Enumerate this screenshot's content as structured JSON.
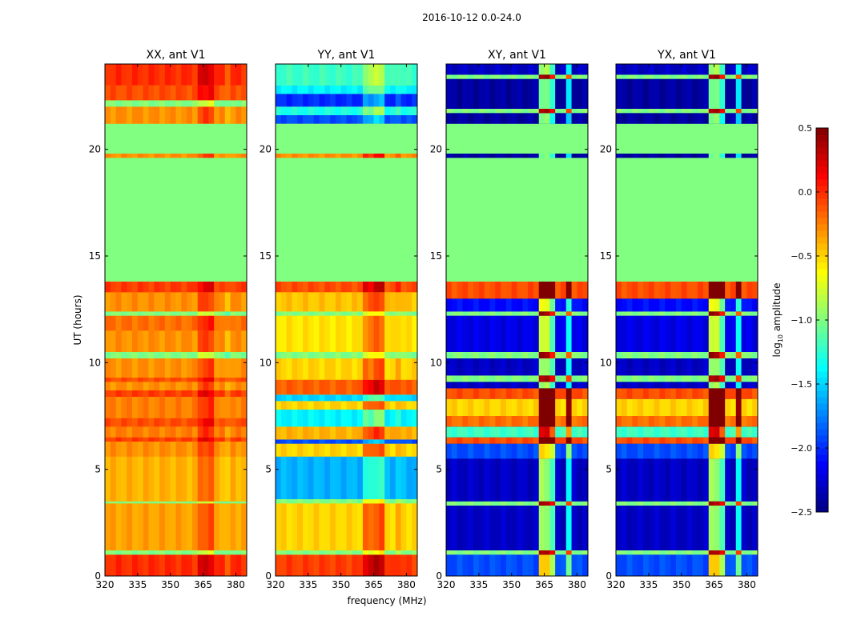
{
  "chart_data": {
    "type": "heatmap",
    "suptitle": "2016-10-12 0.0-24.0",
    "xlabel": "frequency (MHz)",
    "ylabel": "UT (hours)",
    "xlim": [
      320,
      385
    ],
    "ylim": [
      0,
      24
    ],
    "xticks": [
      320,
      335,
      350,
      365,
      380
    ],
    "yticks": [
      0,
      5,
      10,
      15,
      20
    ],
    "colormap": "jet",
    "colorbar": {
      "label": "log10 amplitude",
      "label_base": "log",
      "label_sub": "10",
      "label_rest": " amplitude",
      "vmin": -2.5,
      "vmax": 0.5,
      "ticks": [
        "0.5",
        "0.0",
        "−0.5",
        "−1.0",
        "−1.5",
        "−2.0",
        "−2.5"
      ],
      "tick_values": [
        0.5,
        0.0,
        -0.5,
        -1.0,
        -1.5,
        -2.0,
        -2.5
      ]
    },
    "flagged_range_hours": [
      13.8,
      21.2
    ],
    "flagged_value": -1.0,
    "panels": [
      {
        "title": "XX, ant V1",
        "baseline": -0.3,
        "bands": [
          [
            0,
            1.0,
            0.0
          ],
          [
            1.0,
            1.2,
            -1.0
          ],
          [
            1.2,
            3.4,
            -0.35
          ],
          [
            3.4,
            3.5,
            -1.0
          ],
          [
            3.5,
            5.6,
            -0.4
          ],
          [
            5.6,
            6.3,
            -0.3
          ],
          [
            6.3,
            6.5,
            -0.05
          ],
          [
            6.5,
            7.0,
            -0.25
          ],
          [
            7.0,
            7.4,
            -0.1
          ],
          [
            7.4,
            8.4,
            -0.25
          ],
          [
            8.4,
            8.7,
            -0.05
          ],
          [
            8.7,
            9.1,
            -0.3
          ],
          [
            9.1,
            9.3,
            -0.1
          ],
          [
            9.3,
            10.2,
            -0.3
          ],
          [
            10.2,
            10.5,
            -1.0
          ],
          [
            10.5,
            11.5,
            -0.3
          ],
          [
            11.5,
            12.2,
            -0.2
          ],
          [
            12.2,
            12.4,
            -1.0
          ],
          [
            12.4,
            13.3,
            -0.3
          ],
          [
            13.3,
            13.8,
            -0.05
          ],
          [
            19.6,
            19.8,
            -0.3
          ],
          [
            21.2,
            22.0,
            -0.3
          ],
          [
            22.0,
            22.3,
            -1.0
          ],
          [
            22.3,
            23.0,
            -0.1
          ],
          [
            23.0,
            24.0,
            0.0
          ]
        ],
        "features": [
          [
            362,
            365,
            0.2
          ],
          [
            366,
            369,
            0.25
          ],
          [
            375,
            378,
            -0.1
          ]
        ]
      },
      {
        "title": "YY, ant V1",
        "baseline": -0.5,
        "bands": [
          [
            0,
            1.0,
            -0.05
          ],
          [
            1.0,
            1.2,
            -1.0
          ],
          [
            1.2,
            3.4,
            -0.5
          ],
          [
            3.4,
            3.6,
            -1.0
          ],
          [
            3.6,
            5.6,
            -1.6
          ],
          [
            5.6,
            6.2,
            -0.5
          ],
          [
            6.2,
            6.4,
            -1.9
          ],
          [
            6.4,
            7.0,
            -0.4
          ],
          [
            7.0,
            7.8,
            -1.4
          ],
          [
            7.8,
            8.2,
            -0.5
          ],
          [
            8.2,
            8.5,
            -1.5
          ],
          [
            8.5,
            9.2,
            -0.15
          ],
          [
            9.2,
            10.2,
            -0.5
          ],
          [
            10.2,
            10.5,
            -1.0
          ],
          [
            10.5,
            12.2,
            -0.55
          ],
          [
            12.2,
            12.4,
            -1.0
          ],
          [
            12.4,
            13.3,
            -0.45
          ],
          [
            13.3,
            13.8,
            -0.1
          ],
          [
            19.6,
            19.8,
            -0.3
          ],
          [
            21.2,
            21.6,
            -1.9
          ],
          [
            21.6,
            22.0,
            -1.3
          ],
          [
            22.0,
            22.6,
            -2.0
          ],
          [
            22.6,
            23.0,
            -1.4
          ],
          [
            23.0,
            24.0,
            -1.2
          ]
        ],
        "features": [
          [
            361,
            364,
            0.3
          ],
          [
            365,
            369,
            0.4
          ],
          [
            375,
            378,
            0.1
          ]
        ]
      },
      {
        "title": "XY, ant V1",
        "baseline": -2.3,
        "bands": [
          [
            0,
            1.0,
            -1.9
          ],
          [
            1.0,
            1.2,
            -1.0
          ],
          [
            1.2,
            3.3,
            -2.3
          ],
          [
            3.3,
            3.5,
            -1.0
          ],
          [
            3.5,
            5.5,
            -2.3
          ],
          [
            5.5,
            6.2,
            -1.9
          ],
          [
            6.2,
            6.5,
            -0.1
          ],
          [
            6.5,
            7.0,
            -1.2
          ],
          [
            7.0,
            7.5,
            -0.2
          ],
          [
            7.5,
            8.3,
            -0.5
          ],
          [
            8.3,
            8.8,
            -0.1
          ],
          [
            8.8,
            9.1,
            -2.3
          ],
          [
            9.1,
            9.4,
            -1.0
          ],
          [
            9.4,
            10.2,
            -2.3
          ],
          [
            10.2,
            10.5,
            -1.0
          ],
          [
            10.5,
            12.2,
            -2.2
          ],
          [
            12.2,
            12.4,
            -1.0
          ],
          [
            12.4,
            13.0,
            -2.1
          ],
          [
            13.0,
            13.8,
            -0.1
          ],
          [
            19.6,
            19.8,
            -2.4
          ],
          [
            21.2,
            21.7,
            -2.4
          ],
          [
            21.7,
            21.9,
            -1.0
          ],
          [
            21.9,
            23.3,
            -2.4
          ],
          [
            23.3,
            23.5,
            -1.0
          ],
          [
            23.5,
            24.0,
            -2.3
          ]
        ],
        "features": [
          [
            363,
            367,
            1.4
          ],
          [
            368,
            371,
            1.1
          ],
          [
            374,
            377,
            0.9
          ]
        ]
      },
      {
        "title": "YX, ant V1",
        "baseline": -2.3,
        "bands": [
          [
            0,
            1.0,
            -1.9
          ],
          [
            1.0,
            1.2,
            -1.0
          ],
          [
            1.2,
            3.3,
            -2.3
          ],
          [
            3.3,
            3.5,
            -1.0
          ],
          [
            3.5,
            5.5,
            -2.3
          ],
          [
            5.5,
            6.2,
            -1.9
          ],
          [
            6.2,
            6.5,
            -0.1
          ],
          [
            6.5,
            7.0,
            -1.2
          ],
          [
            7.0,
            7.5,
            -0.2
          ],
          [
            7.5,
            8.3,
            -0.5
          ],
          [
            8.3,
            8.8,
            -0.1
          ],
          [
            8.8,
            9.1,
            -2.3
          ],
          [
            9.1,
            9.4,
            -1.0
          ],
          [
            9.4,
            10.2,
            -2.3
          ],
          [
            10.2,
            10.5,
            -1.0
          ],
          [
            10.5,
            12.2,
            -2.2
          ],
          [
            12.2,
            12.4,
            -1.0
          ],
          [
            12.4,
            13.0,
            -2.1
          ],
          [
            13.0,
            13.8,
            -0.1
          ],
          [
            19.6,
            19.8,
            -2.4
          ],
          [
            21.2,
            21.7,
            -2.4
          ],
          [
            21.7,
            21.9,
            -1.0
          ],
          [
            21.9,
            23.3,
            -2.4
          ],
          [
            23.3,
            23.5,
            -1.0
          ],
          [
            23.5,
            24.0,
            -2.3
          ]
        ],
        "features": [
          [
            363,
            367,
            1.4
          ],
          [
            368,
            371,
            1.1
          ],
          [
            374,
            377,
            0.9
          ]
        ]
      }
    ]
  }
}
